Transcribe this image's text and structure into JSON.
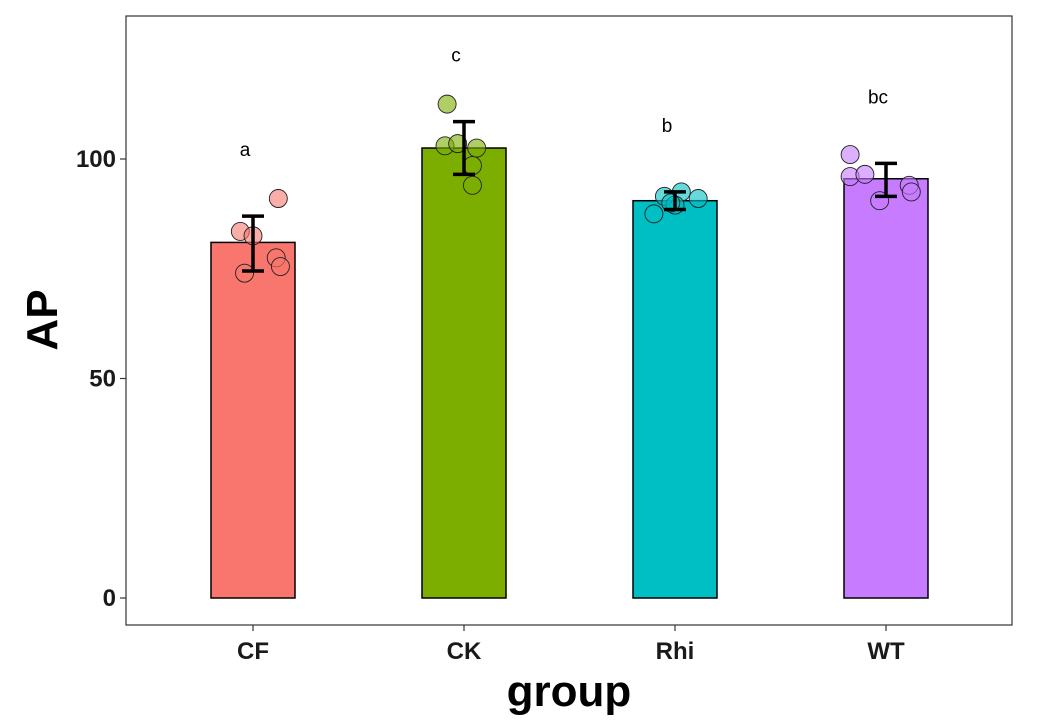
{
  "chart_data": {
    "type": "bar",
    "title": "",
    "xlabel": "group",
    "ylabel": "AP",
    "ylim": [
      -6.2,
      130
    ],
    "yticks": [
      0,
      50,
      100
    ],
    "grid": false,
    "legend": "none",
    "categories": [
      "CF",
      "CK",
      "Rhi",
      "WT"
    ],
    "values": [
      81,
      102.5,
      90.5,
      95.5
    ],
    "error_low": [
      74.5,
      96.5,
      88.5,
      91.5
    ],
    "error_high": [
      87,
      108.5,
      92.5,
      99
    ],
    "significance": [
      "a",
      "c",
      "b",
      "bc"
    ],
    "colors": [
      "#F8766D",
      "#7CAE00",
      "#00BFC4",
      "#C77CFF"
    ],
    "points": [
      [
        {
          "dx": 0.12,
          "y": 91
        },
        {
          "dx": -0.06,
          "y": 83.5
        },
        {
          "dx": 0.0,
          "y": 82.5
        },
        {
          "dx": 0.11,
          "y": 77.5
        },
        {
          "dx": 0.13,
          "y": 75.5
        },
        {
          "dx": -0.04,
          "y": 74
        }
      ],
      [
        {
          "dx": -0.09,
          "y": 103
        },
        {
          "dx": -0.03,
          "y": 103.5
        },
        {
          "dx": -0.08,
          "y": 112.5
        },
        {
          "dx": 0.06,
          "y": 102.5
        },
        {
          "dx": 0.04,
          "y": 98.5
        },
        {
          "dx": 0.04,
          "y": 94
        }
      ],
      [
        {
          "dx": -0.1,
          "y": 87.5
        },
        {
          "dx": -0.05,
          "y": 91.5
        },
        {
          "dx": 0.03,
          "y": 92.5
        },
        {
          "dx": 0.11,
          "y": 91
        },
        {
          "dx": 0.0,
          "y": 89.5
        },
        {
          "dx": -0.02,
          "y": 90
        }
      ],
      [
        {
          "dx": -0.17,
          "y": 101
        },
        {
          "dx": -0.17,
          "y": 96
        },
        {
          "dx": -0.1,
          "y": 96.5
        },
        {
          "dx": 0.11,
          "y": 94
        },
        {
          "dx": 0.12,
          "y": 92.5
        },
        {
          "dx": -0.03,
          "y": 90.5
        }
      ]
    ]
  }
}
